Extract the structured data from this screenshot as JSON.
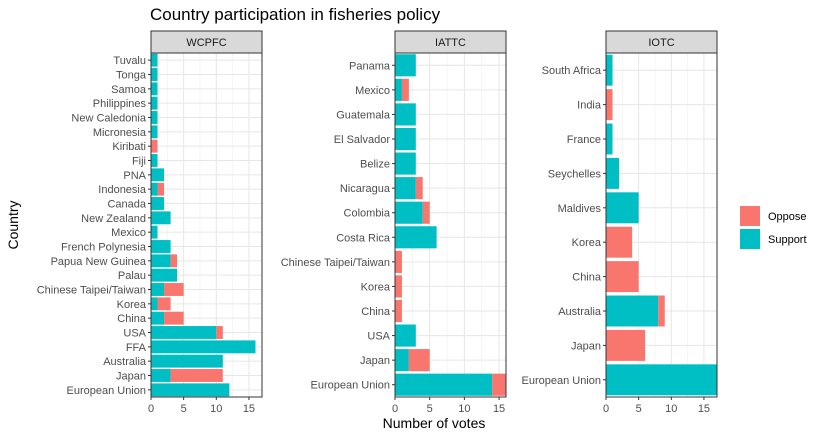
{
  "chart_data": {
    "type": "bar",
    "orientation": "horizontal",
    "stacked": true,
    "title": "Country participation in fisheries policy",
    "xlabel": "Number of votes",
    "ylabel": "Country",
    "grid": true,
    "legend": {
      "placement": "right",
      "entries": [
        {
          "name": "Oppose",
          "color": "#F8766D"
        },
        {
          "name": "Support",
          "color": "#00BFC4"
        }
      ]
    },
    "panel_strip_color": "#D9D9D9",
    "panels": [
      {
        "name": "WCPFC",
        "xlim": [
          0,
          17
        ],
        "xticks": [
          "0",
          "5",
          "10",
          "15"
        ],
        "categories": [
          "Tuvalu",
          "Tonga",
          "Samoa",
          "Philippines",
          "New Caledonia",
          "Micronesia",
          "Kiribati",
          "Fiji",
          "PNA",
          "Indonesia",
          "Canada",
          "New Zealand",
          "Mexico",
          "French Polynesia",
          "Papua New Guinea",
          "Palau",
          "Chinese Taipei/Taiwan",
          "Korea",
          "China",
          "USA",
          "FFA",
          "Australia",
          "Japan",
          "European Union"
        ],
        "series": [
          {
            "name": "Support",
            "values": [
              1,
              1,
              1,
              1,
              1,
              1,
              0,
              1,
              2,
              1,
              2,
              3,
              1,
              3,
              3,
              4,
              2,
              1,
              2,
              10,
              16,
              11,
              3,
              12
            ]
          },
          {
            "name": "Oppose",
            "values": [
              0,
              0,
              0,
              0,
              0,
              0,
              1,
              0,
              0,
              1,
              0,
              0,
              0,
              0,
              1,
              0,
              3,
              2,
              3,
              1,
              0,
              0,
              8,
              0
            ]
          }
        ]
      },
      {
        "name": "IATTC",
        "xlim": [
          0,
          16
        ],
        "xticks": [
          "0",
          "5",
          "10",
          "15"
        ],
        "categories": [
          "Panama",
          "Mexico",
          "Guatemala",
          "El Salvador",
          "Belize",
          "Nicaragua",
          "Colombia",
          "Costa Rica",
          "Chinese Taipei/Taiwan",
          "Korea",
          "China",
          "USA",
          "Japan",
          "European Union"
        ],
        "series": [
          {
            "name": "Support",
            "values": [
              3,
              1,
              3,
              3,
              3,
              3,
              4,
              6,
              0,
              0,
              0,
              3,
              2,
              14
            ]
          },
          {
            "name": "Oppose",
            "values": [
              0,
              1,
              0,
              0,
              0,
              1,
              1,
              0,
              1,
              1,
              1,
              0,
              3,
              2
            ]
          }
        ]
      },
      {
        "name": "IOTC",
        "xlim": [
          0,
          17
        ],
        "xticks": [
          "0",
          "5",
          "10",
          "15"
        ],
        "categories": [
          "South Africa",
          "India",
          "France",
          "Seychelles",
          "Maldives",
          "Korea",
          "China",
          "Australia",
          "Japan",
          "European Union"
        ],
        "series": [
          {
            "name": "Support",
            "values": [
              1,
              0,
              1,
              2,
              5,
              0,
              0,
              8,
              0,
              17
            ]
          },
          {
            "name": "Oppose",
            "values": [
              0,
              1,
              0,
              0,
              0,
              4,
              5,
              1,
              6,
              0
            ]
          }
        ]
      }
    ]
  }
}
